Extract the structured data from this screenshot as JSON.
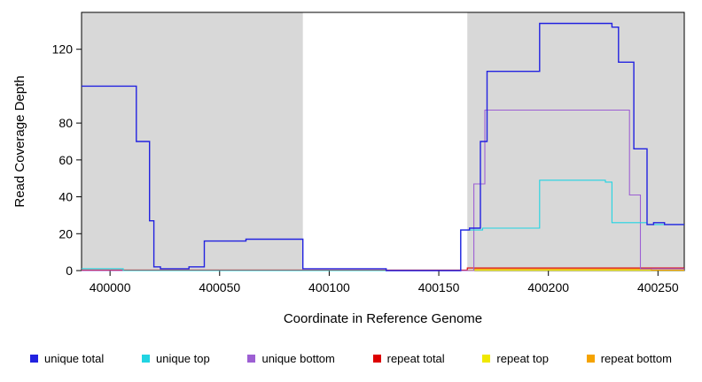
{
  "chart_data": {
    "type": "line",
    "title": "",
    "xlabel": "Coordinate in Reference Genome",
    "ylabel": "Read Coverage Depth",
    "xlim": [
      399987,
      400262
    ],
    "ylim": [
      0,
      140
    ],
    "x_ticks": [
      400000,
      400050,
      400100,
      400150,
      400200,
      400250
    ],
    "y_ticks": [
      0,
      20,
      40,
      60,
      80,
      120
    ],
    "grid": false,
    "legend_position": "bottom",
    "plot_bg": "#ffffff",
    "shaded_regions": [
      {
        "x0": 399987,
        "x1": 400088,
        "color": "#d8d8d8"
      },
      {
        "x0": 400163,
        "x1": 400262,
        "color": "#d8d8d8"
      }
    ],
    "series": [
      {
        "name": "repeat top",
        "color": "#f0e800",
        "width": 1.1,
        "points": [
          [
            399987,
            0.15
          ],
          [
            400262,
            0.15
          ]
        ]
      },
      {
        "name": "repeat bottom",
        "color": "#f5a300",
        "width": 1.1,
        "points": [
          [
            400166,
            0
          ],
          [
            400166,
            0.8
          ],
          [
            400247,
            0.8
          ],
          [
            400247,
            0.3
          ],
          [
            400262,
            0.3
          ]
        ]
      },
      {
        "name": "repeat total",
        "color": "#dd0000",
        "width": 1.1,
        "points": [
          [
            399987,
            0.3
          ],
          [
            400163,
            0.3
          ],
          [
            400163,
            1.4
          ],
          [
            400262,
            1.4
          ]
        ]
      },
      {
        "name": "unique bottom",
        "color": "#9d5fd3",
        "width": 1.1,
        "points": [
          [
            399987,
            0
          ],
          [
            400166,
            0
          ],
          [
            400166,
            47
          ],
          [
            400171,
            47
          ],
          [
            400171,
            87
          ],
          [
            400237,
            87
          ],
          [
            400237,
            41
          ],
          [
            400242,
            41
          ],
          [
            400242,
            1
          ],
          [
            400262,
            1
          ]
        ]
      },
      {
        "name": "unique top",
        "color": "#21d4e2",
        "width": 1.1,
        "points": [
          [
            399987,
            1
          ],
          [
            400006,
            1
          ],
          [
            400006,
            0
          ],
          [
            400160,
            0
          ],
          [
            400160,
            22
          ],
          [
            400170,
            22
          ],
          [
            400170,
            23
          ],
          [
            400196,
            23
          ],
          [
            400196,
            49
          ],
          [
            400226,
            49
          ],
          [
            400226,
            48
          ],
          [
            400229,
            48
          ],
          [
            400229,
            26
          ],
          [
            400245,
            26
          ],
          [
            400245,
            25
          ],
          [
            400262,
            25
          ]
        ]
      },
      {
        "name": "unique total",
        "color": "#2222e0",
        "width": 1.4,
        "points": [
          [
            399987,
            100
          ],
          [
            400012,
            100
          ],
          [
            400012,
            70
          ],
          [
            400018,
            70
          ],
          [
            400018,
            27
          ],
          [
            400020,
            27
          ],
          [
            400020,
            2
          ],
          [
            400023,
            2
          ],
          [
            400023,
            1
          ],
          [
            400036,
            1
          ],
          [
            400036,
            2
          ],
          [
            400043,
            2
          ],
          [
            400043,
            16
          ],
          [
            400062,
            16
          ],
          [
            400062,
            17
          ],
          [
            400088,
            17
          ],
          [
            400088,
            1
          ],
          [
            400126,
            1
          ],
          [
            400126,
            0
          ],
          [
            400160,
            0
          ],
          [
            400160,
            22
          ],
          [
            400164,
            22
          ],
          [
            400164,
            23
          ],
          [
            400169,
            23
          ],
          [
            400169,
            70
          ],
          [
            400172,
            70
          ],
          [
            400172,
            108
          ],
          [
            400196,
            108
          ],
          [
            400196,
            134
          ],
          [
            400229,
            134
          ],
          [
            400229,
            132
          ],
          [
            400232,
            132
          ],
          [
            400232,
            113
          ],
          [
            400239,
            113
          ],
          [
            400239,
            66
          ],
          [
            400245,
            66
          ],
          [
            400245,
            25
          ],
          [
            400248,
            25
          ],
          [
            400248,
            26
          ],
          [
            400253,
            26
          ],
          [
            400253,
            25
          ],
          [
            400262,
            25
          ]
        ]
      }
    ],
    "legend": [
      {
        "label": "unique total",
        "color": "#2222e0"
      },
      {
        "label": "unique top",
        "color": "#21d4e2"
      },
      {
        "label": "unique bottom",
        "color": "#9d5fd3"
      },
      {
        "label": "repeat total",
        "color": "#dd0000"
      },
      {
        "label": "repeat top",
        "color": "#f0e800"
      },
      {
        "label": "repeat bottom",
        "color": "#f5a300"
      }
    ],
    "axis_color": "#000000"
  }
}
